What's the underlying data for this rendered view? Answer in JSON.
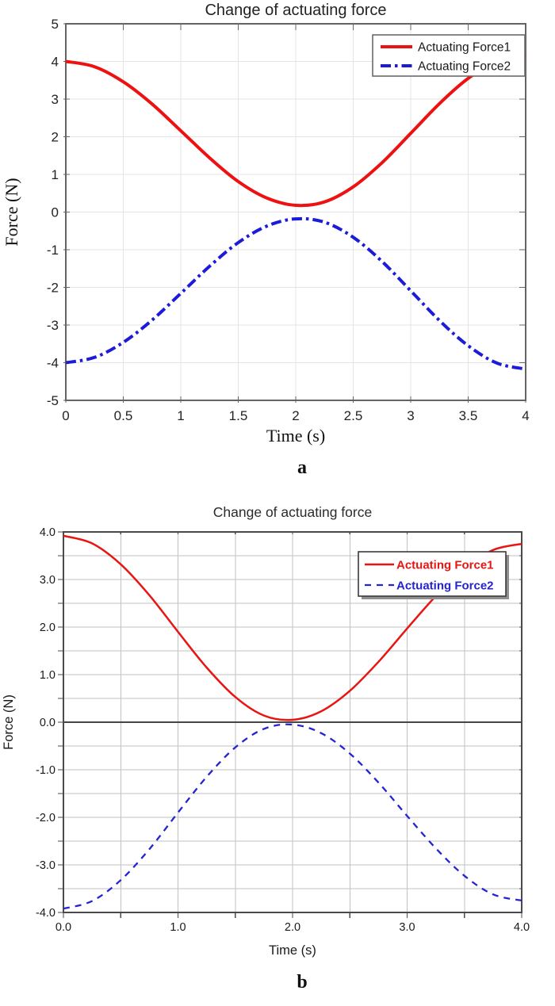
{
  "page": {
    "background": "#ffffff"
  },
  "figures": [
    {
      "caption": "a"
    },
    {
      "caption": "b"
    }
  ],
  "chart_data": [
    {
      "type": "line",
      "title": "Change of actuating force",
      "xlabel": "Time (s)",
      "ylabel": "Force (N)",
      "xlim": [
        0,
        4
      ],
      "ylim": [
        -5,
        5
      ],
      "grid": true,
      "legend_position": "top-right",
      "xticks": [
        0,
        0.5,
        1,
        1.5,
        2,
        2.5,
        3,
        3.5,
        4
      ],
      "xtick_labels": [
        "0",
        "0.5",
        "1",
        "1.5",
        "2",
        "2.5",
        "3",
        "3.5",
        "4"
      ],
      "yticks": [
        -5,
        -4,
        -3,
        -2,
        -1,
        0,
        1,
        2,
        3,
        4,
        5
      ],
      "ytick_labels": [
        "-5",
        "-4",
        "-3",
        "-2",
        "-1",
        "0",
        "1",
        "2",
        "3",
        "4",
        "5"
      ],
      "x": [
        0,
        0.25,
        0.5,
        0.75,
        1,
        1.25,
        1.5,
        1.75,
        2,
        2.25,
        2.5,
        2.75,
        3,
        3.25,
        3.5,
        3.75,
        4
      ],
      "series": [
        {
          "name": "Actuating Force1",
          "color": "#ed1111",
          "line_style": "solid",
          "values": [
            4.0,
            3.86,
            3.46,
            2.87,
            2.16,
            1.44,
            0.81,
            0.37,
            0.18,
            0.27,
            0.67,
            1.31,
            2.09,
            2.88,
            3.55,
            4.01,
            4.17
          ]
        },
        {
          "name": "Actuating Force2",
          "color": "#1c1cd8",
          "line_style": "dash-dot",
          "values": [
            -4.0,
            -3.86,
            -3.46,
            -2.87,
            -2.16,
            -1.44,
            -0.81,
            -0.37,
            -0.18,
            -0.27,
            -0.67,
            -1.31,
            -2.09,
            -2.88,
            -3.55,
            -4.01,
            -4.17
          ]
        }
      ]
    },
    {
      "type": "line",
      "title": "Change of actuating force",
      "xlabel": "Time (s)",
      "ylabel": "Force (N)",
      "xlim": [
        0,
        4
      ],
      "ylim": [
        -4,
        4
      ],
      "grid": true,
      "grid_minor": true,
      "zero_line": true,
      "legend_position": "top-right",
      "xticks": [
        0,
        1,
        2,
        3,
        4
      ],
      "xtick_labels": [
        "0.0",
        "1.0",
        "2.0",
        "3.0",
        "4.0"
      ],
      "xticks_minor": [
        0.5,
        1.5,
        2.5,
        3.5
      ],
      "yticks": [
        -4,
        -3,
        -2,
        -1,
        0,
        1,
        2,
        3,
        4
      ],
      "ytick_labels": [
        "-4.0",
        "-3.0",
        "-2.0",
        "-1.0",
        "0.0",
        "1.0",
        "2.0",
        "3.0",
        "4.0"
      ],
      "yticks_minor": [
        -3.5,
        -2.5,
        -1.5,
        -0.5,
        0.5,
        1.5,
        2.5,
        3.5
      ],
      "x": [
        0,
        0.25,
        0.5,
        0.75,
        1,
        1.25,
        1.5,
        1.75,
        2,
        2.25,
        2.5,
        2.75,
        3,
        3.25,
        3.5,
        3.75,
        4
      ],
      "series": [
        {
          "name": "Actuating Force1",
          "color": "#e81613",
          "line_style": "solid",
          "values": [
            3.92,
            3.76,
            3.32,
            2.67,
            1.9,
            1.15,
            0.53,
            0.14,
            0.05,
            0.23,
            0.66,
            1.27,
            1.97,
            2.65,
            3.23,
            3.62,
            3.75
          ]
        },
        {
          "name": "Actuating Force2",
          "color": "#2424d2",
          "line_style": "dashed",
          "values": [
            -3.92,
            -3.76,
            -3.32,
            -2.67,
            -1.9,
            -1.15,
            -0.53,
            -0.14,
            -0.05,
            -0.23,
            -0.66,
            -1.27,
            -1.97,
            -2.65,
            -3.23,
            -3.62,
            -3.75
          ]
        }
      ]
    }
  ]
}
